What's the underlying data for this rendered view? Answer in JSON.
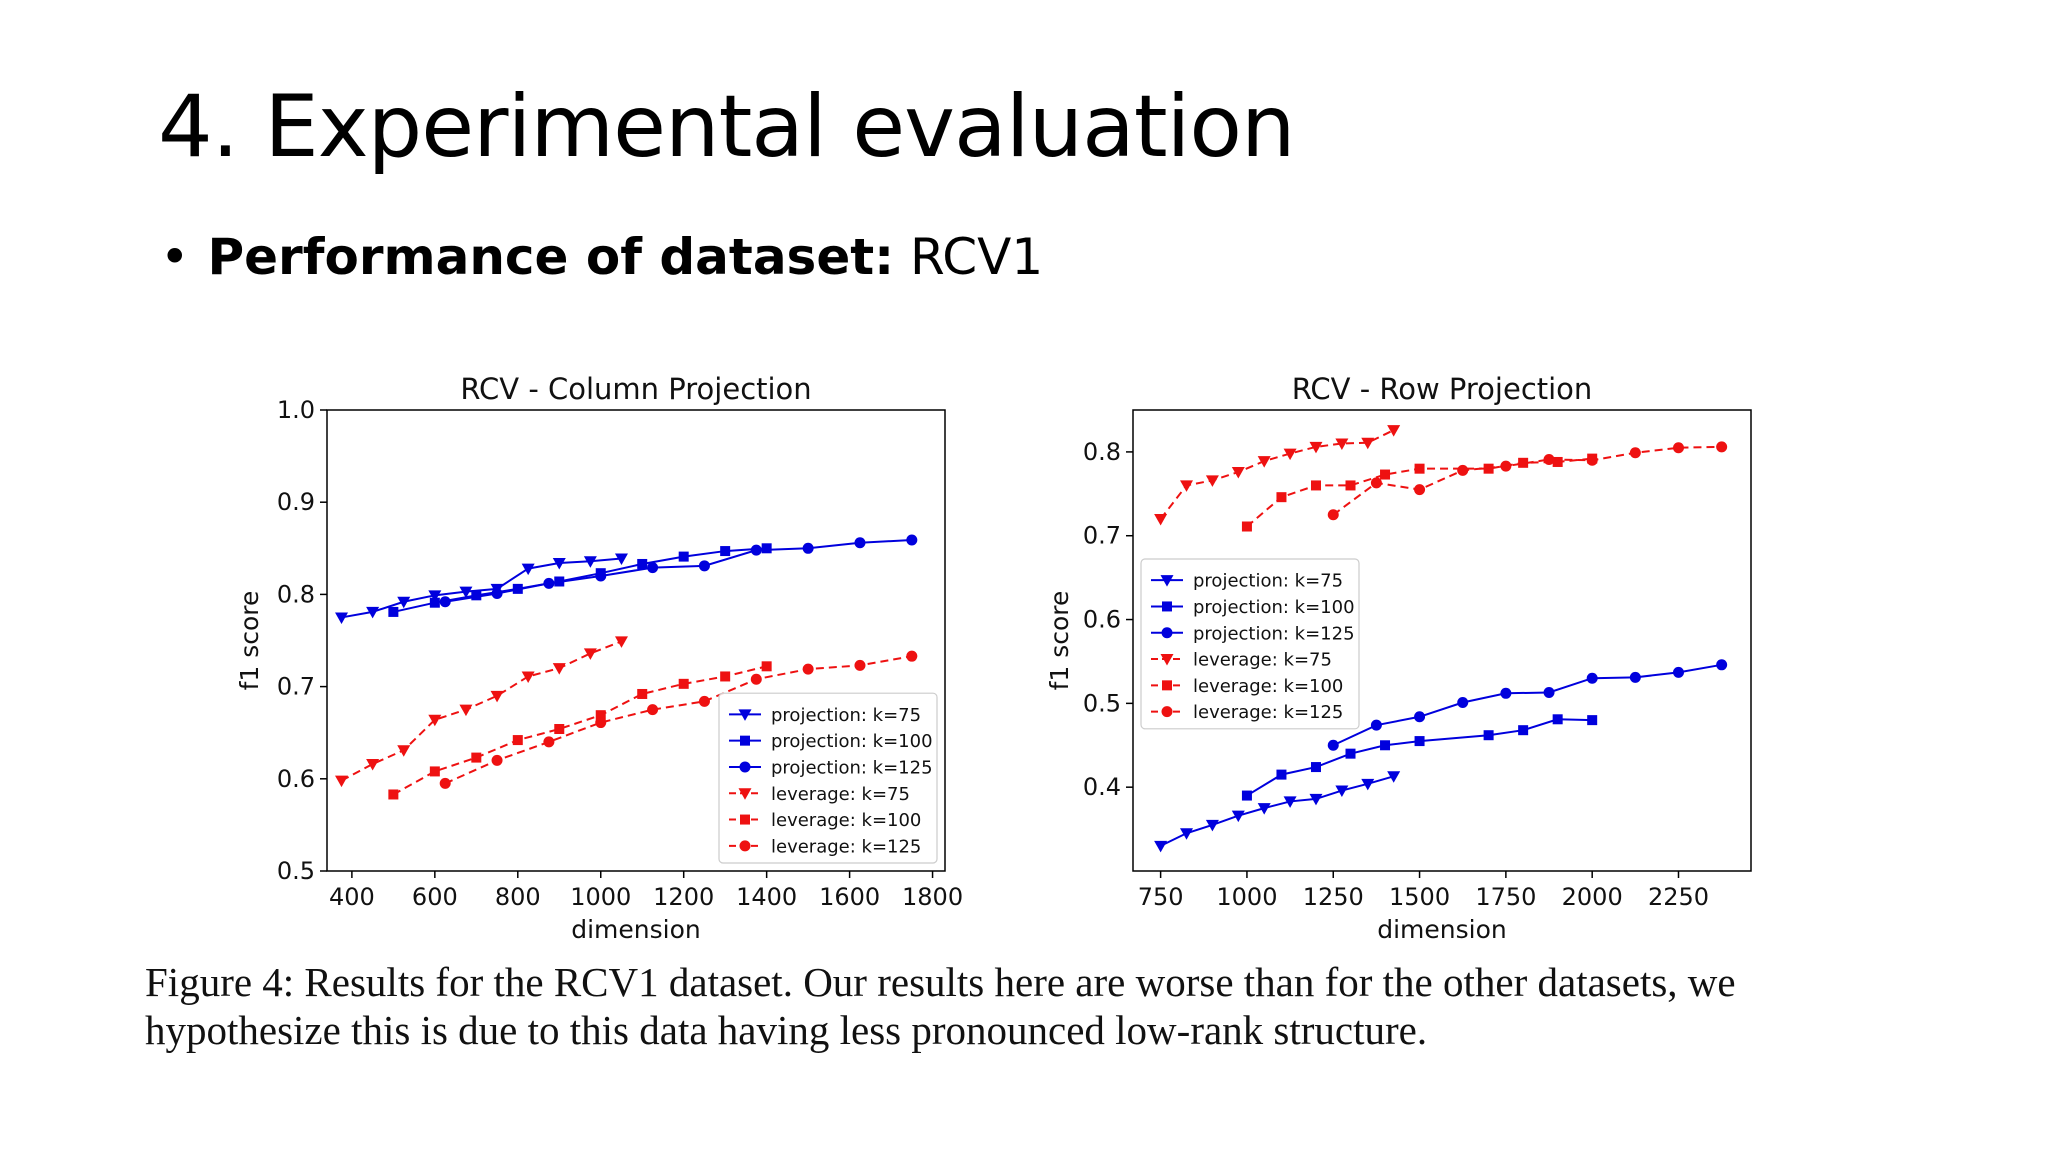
{
  "slide": {
    "title": "4. Experimental evaluation",
    "bullet_marker": "•",
    "bullet_bold": "Performance of dataset:",
    "bullet_text": " RCV1"
  },
  "caption": {
    "line1": "Figure 4: Results for the RCV1 dataset. Our results here are worse than for the other datasets, we",
    "line2": "hypothesize this is due to this data having less pronounced low-rank structure."
  },
  "chart_data": [
    {
      "type": "line",
      "title": "RCV - Column Projection",
      "xlabel": "dimension",
      "ylabel": "f1 score",
      "xlim": [
        340,
        1830
      ],
      "ylim": [
        0.5,
        1.0
      ],
      "xticks": [
        400,
        600,
        800,
        1000,
        1200,
        1400,
        1600,
        1800
      ],
      "yticks": [
        0.5,
        0.6,
        0.7,
        0.8,
        0.9,
        1.0
      ],
      "ytick_labels": [
        "0.5",
        "0.6",
        "0.7",
        "0.8",
        "0.9",
        "1.0"
      ],
      "grid": false,
      "legend_position": "lower-right",
      "series": [
        {
          "name": "projection: k=75",
          "color": "#0000dd",
          "marker": "triangle-down",
          "dash": "solid",
          "x": [
            375,
            450,
            525,
            600,
            675,
            750,
            825,
            900,
            975,
            1050
          ],
          "y": [
            0.775,
            0.781,
            0.792,
            0.799,
            0.803,
            0.806,
            0.828,
            0.834,
            0.836,
            0.839
          ]
        },
        {
          "name": "projection: k=100",
          "color": "#0000dd",
          "marker": "square",
          "dash": "solid",
          "x": [
            500,
            600,
            700,
            800,
            900,
            1000,
            1100,
            1200,
            1300,
            1400
          ],
          "y": [
            0.781,
            0.791,
            0.799,
            0.806,
            0.814,
            0.823,
            0.833,
            0.841,
            0.847,
            0.85
          ]
        },
        {
          "name": "projection: k=125",
          "color": "#0000dd",
          "marker": "circle",
          "dash": "solid",
          "x": [
            625,
            750,
            875,
            1000,
            1125,
            1250,
            1375,
            1500,
            1625,
            1750
          ],
          "y": [
            0.792,
            0.801,
            0.812,
            0.82,
            0.829,
            0.831,
            0.848,
            0.85,
            0.856,
            0.859
          ]
        },
        {
          "name": "leverage: k=75",
          "color": "#ee1111",
          "marker": "triangle-down",
          "dash": "dashed",
          "x": [
            375,
            450,
            525,
            600,
            675,
            750,
            825,
            900,
            975,
            1050
          ],
          "y": [
            0.598,
            0.616,
            0.631,
            0.664,
            0.675,
            0.69,
            0.711,
            0.72,
            0.736,
            0.749
          ]
        },
        {
          "name": "leverage: k=100",
          "color": "#ee1111",
          "marker": "square",
          "dash": "dashed",
          "x": [
            500,
            600,
            700,
            800,
            900,
            1000,
            1100,
            1200,
            1300,
            1400
          ],
          "y": [
            0.583,
            0.608,
            0.623,
            0.642,
            0.654,
            0.669,
            0.692,
            0.703,
            0.711,
            0.722
          ]
        },
        {
          "name": "leverage: k=125",
          "color": "#ee1111",
          "marker": "circle",
          "dash": "dashed",
          "x": [
            625,
            750,
            875,
            1000,
            1125,
            1250,
            1375,
            1500,
            1625,
            1750
          ],
          "y": [
            0.595,
            0.62,
            0.64,
            0.661,
            0.675,
            0.684,
            0.708,
            0.719,
            0.723,
            0.733
          ]
        }
      ]
    },
    {
      "type": "line",
      "title": "RCV - Row Projection",
      "xlabel": "dimension",
      "ylabel": "f1 score",
      "xlim": [
        670,
        2460
      ],
      "ylim": [
        0.3,
        0.85
      ],
      "xticks": [
        750,
        1000,
        1250,
        1500,
        1750,
        2000,
        2250
      ],
      "yticks": [
        0.4,
        0.5,
        0.6,
        0.7,
        0.8
      ],
      "ytick_labels": [
        "0.4",
        "0.5",
        "0.6",
        "0.7",
        "0.8"
      ],
      "grid": false,
      "legend_position": "center-left",
      "series": [
        {
          "name": "projection: k=75",
          "color": "#0000dd",
          "marker": "triangle-down",
          "dash": "solid",
          "x": [
            750,
            825,
            900,
            975,
            1050,
            1125,
            1200,
            1275,
            1350,
            1425
          ],
          "y": [
            0.33,
            0.345,
            0.355,
            0.366,
            0.375,
            0.383,
            0.386,
            0.396,
            0.404,
            0.413
          ]
        },
        {
          "name": "projection: k=100",
          "color": "#0000dd",
          "marker": "square",
          "dash": "solid",
          "x": [
            1000,
            1100,
            1200,
            1300,
            1400,
            1500,
            1700,
            1800,
            1900,
            2000
          ],
          "y": [
            0.39,
            0.415,
            0.424,
            0.44,
            0.45,
            0.455,
            0.462,
            0.468,
            0.481,
            0.48
          ]
        },
        {
          "name": "projection: k=125",
          "color": "#0000dd",
          "marker": "circle",
          "dash": "solid",
          "x": [
            1250,
            1375,
            1500,
            1625,
            1750,
            1875,
            2000,
            2125,
            2250,
            2375
          ],
          "y": [
            0.45,
            0.474,
            0.484,
            0.501,
            0.512,
            0.513,
            0.53,
            0.531,
            0.537,
            0.546
          ]
        },
        {
          "name": "leverage: k=75",
          "color": "#ee1111",
          "marker": "triangle-down",
          "dash": "dashed",
          "x": [
            750,
            825,
            900,
            975,
            1050,
            1125,
            1200,
            1275,
            1350,
            1425
          ],
          "y": [
            0.72,
            0.76,
            0.766,
            0.776,
            0.789,
            0.798,
            0.806,
            0.81,
            0.811,
            0.826
          ]
        },
        {
          "name": "leverage: k=100",
          "color": "#ee1111",
          "marker": "square",
          "dash": "dashed",
          "x": [
            1000,
            1100,
            1200,
            1300,
            1400,
            1500,
            1700,
            1800,
            1900,
            2000
          ],
          "y": [
            0.711,
            0.746,
            0.76,
            0.76,
            0.773,
            0.78,
            0.78,
            0.787,
            0.788,
            0.792
          ]
        },
        {
          "name": "leverage: k=125",
          "color": "#ee1111",
          "marker": "circle",
          "dash": "dashed",
          "x": [
            1250,
            1375,
            1500,
            1625,
            1750,
            1875,
            2000,
            2125,
            2250,
            2375
          ],
          "y": [
            0.725,
            0.763,
            0.755,
            0.778,
            0.783,
            0.791,
            0.79,
            0.799,
            0.805,
            0.806
          ]
        }
      ]
    }
  ]
}
